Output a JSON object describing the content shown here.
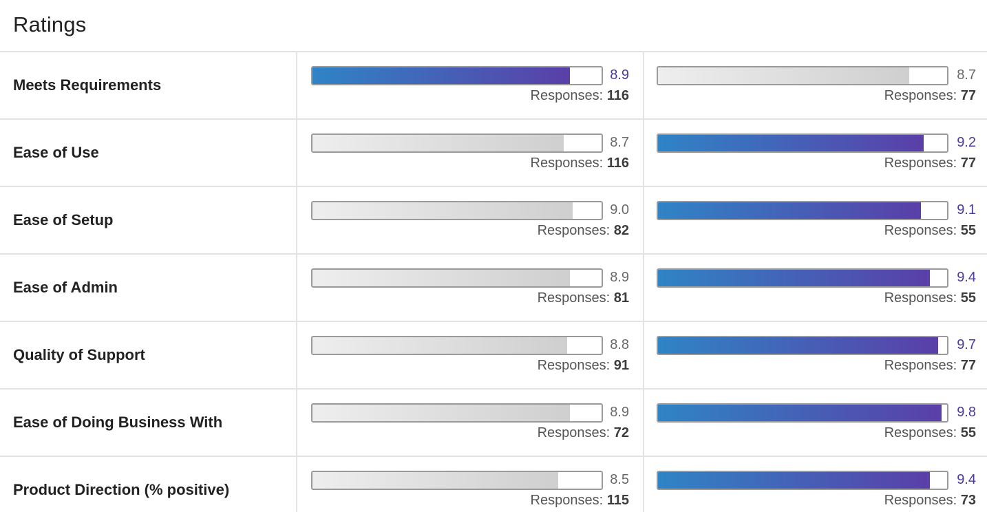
{
  "title": "Ratings",
  "responses_label": "Responses:",
  "colors": {
    "accent_start": "#2f84c6",
    "accent_end": "#5a3fa8",
    "accent_text": "#4b3aa0",
    "neutral_fill": "#cfcfcf",
    "divider": "#e3e3e3"
  },
  "rows": [
    {
      "label": "Meets Requirements",
      "left": {
        "score": "8.9",
        "responses": "116",
        "highlight": true
      },
      "right": {
        "score": "8.7",
        "responses": "77",
        "highlight": false
      }
    },
    {
      "label": "Ease of Use",
      "left": {
        "score": "8.7",
        "responses": "116",
        "highlight": false
      },
      "right": {
        "score": "9.2",
        "responses": "77",
        "highlight": true
      }
    },
    {
      "label": "Ease of Setup",
      "left": {
        "score": "9.0",
        "responses": "82",
        "highlight": false
      },
      "right": {
        "score": "9.1",
        "responses": "55",
        "highlight": true
      }
    },
    {
      "label": "Ease of Admin",
      "left": {
        "score": "8.9",
        "responses": "81",
        "highlight": false
      },
      "right": {
        "score": "9.4",
        "responses": "55",
        "highlight": true
      }
    },
    {
      "label": "Quality of Support",
      "left": {
        "score": "8.8",
        "responses": "91",
        "highlight": false
      },
      "right": {
        "score": "9.7",
        "responses": "77",
        "highlight": true
      }
    },
    {
      "label": "Ease of Doing Business With",
      "left": {
        "score": "8.9",
        "responses": "72",
        "highlight": false
      },
      "right": {
        "score": "9.8",
        "responses": "55",
        "highlight": true
      }
    },
    {
      "label": "Product Direction (% positive)",
      "left": {
        "score": "8.5",
        "responses": "115",
        "highlight": false
      },
      "right": {
        "score": "9.4",
        "responses": "73",
        "highlight": true
      }
    }
  ]
}
